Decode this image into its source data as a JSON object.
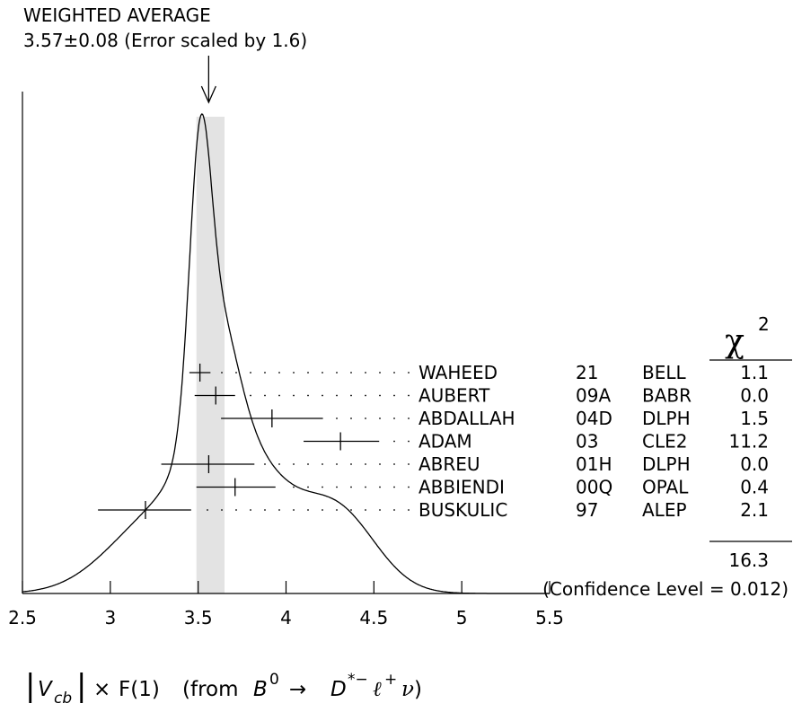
{
  "chart_data": {
    "type": "ideogram",
    "average_title": "WEIGHTED AVERAGE",
    "average_value_text": "3.57±0.08 (Error scaled by 1.6)",
    "average": {
      "value": 3.57,
      "error": 0.08,
      "scale_factor": 1.6
    },
    "xlim": [
      2.5,
      5.5
    ],
    "xticks": [
      2.5,
      3,
      3.5,
      4,
      4.5,
      5,
      5.5
    ],
    "xtick_labels": [
      "2.5",
      "3",
      "3.5",
      "4",
      "4.5",
      "5",
      "5.5"
    ],
    "xlabel": {
      "abs_open": "|",
      "v": "V",
      "v_sub": "cb",
      "abs_close": "|",
      "times": "×",
      "f": "F(1)",
      "from": "(from",
      "b": "B",
      "b_sup": "0",
      "arrow": "→",
      "d": "D",
      "d_sup": "*−",
      "ell": "ℓ",
      "ell_sup": "+",
      "nu": "ν",
      "close": ")"
    },
    "chi2_header": {
      "symbol": "χ",
      "power": "2"
    },
    "measurements": [
      {
        "name": "WAHEED",
        "year": "21",
        "exp": "BELL",
        "value": 3.51,
        "lo": 3.45,
        "hi": 3.57,
        "chi2": "1.1"
      },
      {
        "name": "AUBERT",
        "year": "09A",
        "exp": "BABR",
        "value": 3.6,
        "lo": 3.48,
        "hi": 3.71,
        "chi2": "0.0"
      },
      {
        "name": "ABDALLAH",
        "year": "04D",
        "exp": "DLPH",
        "value": 3.92,
        "lo": 3.63,
        "hi": 4.21,
        "chi2": "1.5"
      },
      {
        "name": "ADAM",
        "year": "03",
        "exp": "CLE2",
        "value": 4.31,
        "lo": 4.1,
        "hi": 4.53,
        "chi2": "11.2"
      },
      {
        "name": "ABREU",
        "year": "01H",
        "exp": "DLPH",
        "value": 3.56,
        "lo": 3.29,
        "hi": 3.82,
        "chi2": "0.0"
      },
      {
        "name": "ABBIENDI",
        "year": "00Q",
        "exp": "OPAL",
        "value": 3.71,
        "lo": 3.49,
        "hi": 3.94,
        "chi2": "0.4"
      },
      {
        "name": "BUSKULIC",
        "year": "97",
        "exp": "ALEP",
        "value": 3.2,
        "lo": 2.93,
        "hi": 3.46,
        "chi2": "2.1"
      }
    ],
    "chi2_total": "16.3",
    "confidence_level_text": "(Confidence Level = 0.012)"
  }
}
